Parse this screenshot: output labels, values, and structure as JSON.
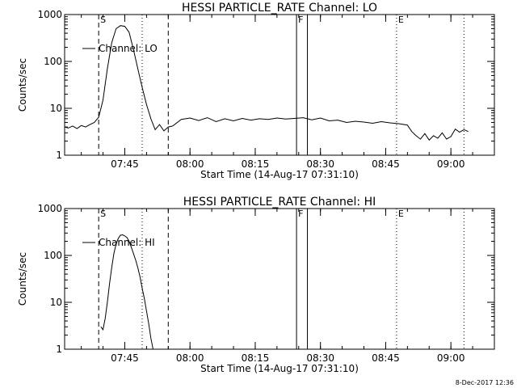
{
  "footer": {
    "date_stamp": "8-Dec-2017 12:36"
  },
  "chart_data": [
    {
      "type": "line",
      "title": "HESSI PARTICLE_RATE Channel: LO",
      "xlabel": "Start Time (14-Aug-17 07:31:10)",
      "ylabel": "Counts/sec",
      "yscale": "log",
      "ylim": [
        1,
        1000
      ],
      "xlim": [
        "07:31:10",
        "09:10:00"
      ],
      "x_tick_labels": [
        "07:45",
        "08:00",
        "08:15",
        "08:30",
        "08:45",
        "09:00"
      ],
      "y_tick_labels": [
        "1",
        "10",
        "100",
        "1000"
      ],
      "legend": {
        "label": "Channel: LO",
        "placement": "top-left"
      },
      "markers": [
        {
          "label": "S",
          "time": "07:39:00",
          "style": "dashed"
        },
        {
          "label": "",
          "time": "07:49:00",
          "style": "dotted"
        },
        {
          "label": "",
          "time": "07:55:00",
          "style": "dashed"
        },
        {
          "label": "F",
          "time": "08:24:30",
          "style": "solid"
        },
        {
          "label": "",
          "time": "08:27:00",
          "style": "solid"
        },
        {
          "label": "E",
          "time": "08:47:30",
          "style": "dotted"
        },
        {
          "label": "",
          "time": "09:03:00",
          "style": "dotted"
        }
      ],
      "series": [
        {
          "name": "Channel: LO",
          "x": [
            "07:31:10",
            "07:32:00",
            "07:33:00",
            "07:34:00",
            "07:35:00",
            "07:36:00",
            "07:37:00",
            "07:38:00",
            "07:39:00",
            "07:40:00",
            "07:41:00",
            "07:42:00",
            "07:43:00",
            "07:44:00",
            "07:45:00",
            "07:46:00",
            "07:47:00",
            "07:48:00",
            "07:49:00",
            "07:50:00",
            "07:51:00",
            "07:52:00",
            "07:53:00",
            "07:54:00",
            "07:55:00",
            "07:56:00",
            "07:58:00",
            "08:00:00",
            "08:02:00",
            "08:04:00",
            "08:06:00",
            "08:08:00",
            "08:10:00",
            "08:12:00",
            "08:14:00",
            "08:16:00",
            "08:18:00",
            "08:20:00",
            "08:22:00",
            "08:24:00",
            "08:26:00",
            "08:28:00",
            "08:30:00",
            "08:32:00",
            "08:34:00",
            "08:36:00",
            "08:38:00",
            "08:40:00",
            "08:42:00",
            "08:44:00",
            "08:46:00",
            "08:48:00",
            "08:50:00",
            "08:51:00",
            "08:52:00",
            "08:53:00",
            "08:54:00",
            "08:55:00",
            "08:56:00",
            "08:57:00",
            "08:58:00",
            "08:59:00",
            "09:00:00",
            "09:01:00",
            "09:02:00",
            "09:03:00",
            "09:04:00"
          ],
          "y": [
            4,
            3.8,
            4.2,
            3.7,
            4.3,
            4,
            4.5,
            5,
            6.5,
            15,
            70,
            250,
            500,
            580,
            560,
            420,
            180,
            70,
            28,
            12,
            6,
            3.5,
            4.5,
            3.3,
            4,
            4.2,
            5.8,
            6.2,
            5.5,
            6.3,
            5.2,
            6,
            5.4,
            6.1,
            5.6,
            6,
            5.8,
            6.2,
            5.9,
            6.1,
            6.3,
            5.7,
            6.2,
            5.4,
            5.6,
            5,
            5.3,
            5.1,
            4.8,
            5.2,
            4.9,
            4.7,
            4.4,
            3.2,
            2.6,
            2.2,
            2.9,
            2.1,
            2.6,
            2.3,
            3,
            2.2,
            2.5,
            3.6,
            3.1,
            3.5,
            3.2
          ]
        }
      ]
    },
    {
      "type": "line",
      "title": "HESSI PARTICLE_RATE Channel: HI",
      "xlabel": "Start Time (14-Aug-17 07:31:10)",
      "ylabel": "Counts/sec",
      "yscale": "log",
      "ylim": [
        1,
        1000
      ],
      "xlim": [
        "07:31:10",
        "09:10:00"
      ],
      "x_tick_labels": [
        "07:45",
        "08:00",
        "08:15",
        "08:30",
        "08:45",
        "09:00"
      ],
      "y_tick_labels": [
        "1",
        "10",
        "100",
        "1000"
      ],
      "legend": {
        "label": "Channel: HI",
        "placement": "top-left"
      },
      "markers": [
        {
          "label": "S",
          "time": "07:39:00",
          "style": "dashed"
        },
        {
          "label": "",
          "time": "07:49:00",
          "style": "dotted"
        },
        {
          "label": "",
          "time": "07:55:00",
          "style": "dashed"
        },
        {
          "label": "F",
          "time": "08:24:30",
          "style": "solid"
        },
        {
          "label": "",
          "time": "08:27:00",
          "style": "solid"
        },
        {
          "label": "E",
          "time": "08:47:30",
          "style": "dotted"
        },
        {
          "label": "",
          "time": "09:03:00",
          "style": "dotted"
        }
      ],
      "series": [
        {
          "name": "Channel: HI",
          "x": [
            "07:39:30",
            "07:40:00",
            "07:40:30",
            "07:41:00",
            "07:41:30",
            "07:42:00",
            "07:42:30",
            "07:43:00",
            "07:43:30",
            "07:44:00",
            "07:44:30",
            "07:45:00",
            "07:45:30",
            "07:46:00",
            "07:46:30",
            "07:47:00",
            "07:47:30",
            "07:48:00",
            "07:48:30",
            "07:49:00",
            "07:49:30",
            "07:50:00",
            "07:50:30",
            "07:51:00",
            "07:51:30"
          ],
          "y": [
            3,
            2.6,
            4.5,
            10,
            25,
            55,
            110,
            175,
            230,
            270,
            275,
            260,
            240,
            200,
            150,
            110,
            80,
            55,
            35,
            20,
            12,
            6.5,
            3.5,
            1.7,
            1
          ]
        }
      ]
    }
  ]
}
